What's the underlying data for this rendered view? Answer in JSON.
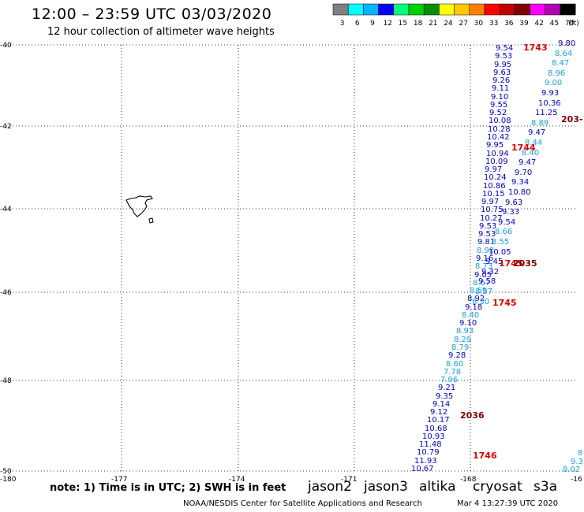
{
  "header": {
    "title": "12:00 – 23:59 UTC 03/03/2020",
    "subtitle": "12 hour collection of altimeter wave heights"
  },
  "color_scale": {
    "unit": "(ft)",
    "bins": [
      {
        "label": "3",
        "color": "#808080"
      },
      {
        "label": "6",
        "color": "#00ffff"
      },
      {
        "label": "9",
        "color": "#00b4ff"
      },
      {
        "label": "12",
        "color": "#0000ff"
      },
      {
        "label": "15",
        "color": "#00ff80"
      },
      {
        "label": "18",
        "color": "#00d000"
      },
      {
        "label": "21",
        "color": "#009000"
      },
      {
        "label": "24",
        "color": "#ffff00"
      },
      {
        "label": "27",
        "color": "#ffc800"
      },
      {
        "label": "30",
        "color": "#ff8000"
      },
      {
        "label": "33",
        "color": "#ff0000"
      },
      {
        "label": "36",
        "color": "#c00000"
      },
      {
        "label": "39",
        "color": "#800000"
      },
      {
        "label": "42",
        "color": "#ff00ff"
      },
      {
        "label": "45",
        "color": "#b000b0"
      },
      {
        "label": "70",
        "color": "#000000"
      }
    ]
  },
  "map": {
    "lat_range": [
      -50,
      -40
    ],
    "lon_range": [
      -180,
      -165
    ],
    "lat_labels": [
      "-40",
      "-42",
      "-44",
      "-46",
      "-48",
      "-50"
    ],
    "lon_labels": [
      "-180",
      "-177",
      "-174",
      "-171",
      "-168",
      "-16"
    ],
    "grid": true
  },
  "satellites": [
    {
      "name": "jason2",
      "color": "#0000cc"
    },
    {
      "name": "jason3",
      "color": "#00a000"
    },
    {
      "name": "altika",
      "color": "#ff8c00"
    },
    {
      "name": "cryosat",
      "color": "#e00000"
    },
    {
      "name": "s3a",
      "color": "#7a0000"
    }
  ],
  "pass_times": [
    {
      "label": "1743",
      "color": "#e00000"
    },
    {
      "label": "203-",
      "color": "#7a0000"
    },
    {
      "label": "1744",
      "color": "#e00000"
    },
    {
      "label": "1745",
      "color": "#e00000"
    },
    {
      "label": "1746",
      "color": "#e00000"
    },
    {
      "label": "1745",
      "color": "#e00000"
    },
    {
      "label": "2035",
      "color": "#7a0000"
    },
    {
      "label": "2036",
      "color": "#7a0000"
    }
  ],
  "track_left": [
    {
      "v": "9.54",
      "c": "#0000cc"
    },
    {
      "v": "9.53",
      "c": "#0000cc"
    },
    {
      "v": "9.95",
      "c": "#0000cc"
    },
    {
      "v": "9.63",
      "c": "#0000cc"
    },
    {
      "v": "9.26",
      "c": "#0000cc"
    },
    {
      "v": "9.11",
      "c": "#0000cc"
    },
    {
      "v": "9.10",
      "c": "#0000cc"
    },
    {
      "v": "9.55",
      "c": "#0000cc"
    },
    {
      "v": "9.52",
      "c": "#0000cc"
    },
    {
      "v": "10.08",
      "c": "#0000cc"
    },
    {
      "v": "10.28",
      "c": "#0000cc"
    },
    {
      "v": "10.42",
      "c": "#0000cc"
    },
    {
      "v": "9.95",
      "c": "#0000cc"
    },
    {
      "v": "10.94",
      "c": "#0000cc"
    },
    {
      "v": "10.09",
      "c": "#0000cc"
    },
    {
      "v": "9.97",
      "c": "#0000cc"
    },
    {
      "v": "10.24",
      "c": "#0000cc"
    },
    {
      "v": "10.86",
      "c": "#0000cc"
    },
    {
      "v": "10.15",
      "c": "#0000cc"
    },
    {
      "v": "9.97",
      "c": "#0000cc"
    },
    {
      "v": "10.75",
      "c": "#0000cc"
    },
    {
      "v": "10.27",
      "c": "#0000cc"
    },
    {
      "v": "9.53",
      "c": "#0000cc"
    },
    {
      "v": "9.53",
      "c": "#0000cc"
    },
    {
      "v": "9.81",
      "c": "#0000cc"
    },
    {
      "v": "8.98",
      "c": "#1aa0e0"
    },
    {
      "v": "9.16",
      "c": "#0000cc"
    },
    {
      "v": "8.73",
      "c": "#1aa0e0"
    },
    {
      "v": "9.05",
      "c": "#0000cc"
    },
    {
      "v": "8.67",
      "c": "#1aa0e0"
    },
    {
      "v": "8.59",
      "c": "#1aa0e0"
    },
    {
      "v": "8.92",
      "c": "#0000cc"
    },
    {
      "v": "9.18",
      "c": "#0000cc"
    },
    {
      "v": "8.40",
      "c": "#1aa0e0"
    },
    {
      "v": "9.10",
      "c": "#0000cc"
    },
    {
      "v": "8.93",
      "c": "#1aa0e0"
    },
    {
      "v": "8.29",
      "c": "#1aa0e0"
    },
    {
      "v": "8.79",
      "c": "#1aa0e0"
    },
    {
      "v": "9.28",
      "c": "#0000cc"
    },
    {
      "v": "8.60",
      "c": "#1aa0e0"
    },
    {
      "v": "7.78",
      "c": "#1aa0e0"
    },
    {
      "v": "7.96",
      "c": "#1aa0e0"
    },
    {
      "v": "9.21",
      "c": "#0000cc"
    },
    {
      "v": "9.35",
      "c": "#0000cc"
    },
    {
      "v": "9.14",
      "c": "#0000cc"
    },
    {
      "v": "9.12",
      "c": "#0000cc"
    },
    {
      "v": "10.17",
      "c": "#0000cc"
    },
    {
      "v": "10.68",
      "c": "#0000cc"
    },
    {
      "v": "10.93",
      "c": "#0000cc"
    },
    {
      "v": "11.48",
      "c": "#0000cc"
    },
    {
      "v": "10.79",
      "c": "#0000cc"
    },
    {
      "v": "11.93",
      "c": "#0000cc"
    },
    {
      "v": "10.67",
      "c": "#0000cc"
    }
  ],
  "track_right": [
    {
      "v": "9.80",
      "c": "#0000cc"
    },
    {
      "v": "8.64",
      "c": "#1aa0e0"
    },
    {
      "v": "8.47",
      "c": "#1aa0e0"
    },
    {
      "v": "8.96",
      "c": "#1aa0e0"
    },
    {
      "v": "9.00",
      "c": "#1aa0e0"
    },
    {
      "v": "9.93",
      "c": "#0000cc"
    },
    {
      "v": "10.36",
      "c": "#0000cc"
    },
    {
      "v": "11.25",
      "c": "#0000cc"
    },
    {
      "v": "8.89",
      "c": "#1aa0e0"
    },
    {
      "v": "9.47",
      "c": "#0000cc"
    },
    {
      "v": "8.44",
      "c": "#1aa0e0"
    },
    {
      "v": "8.40",
      "c": "#1aa0e0"
    },
    {
      "v": "9.47",
      "c": "#0000cc"
    },
    {
      "v": "9.70",
      "c": "#0000cc"
    },
    {
      "v": "9.34",
      "c": "#0000cc"
    },
    {
      "v": "10.80",
      "c": "#0000cc"
    },
    {
      "v": "9.63",
      "c": "#0000cc"
    },
    {
      "v": "9.33",
      "c": "#0000cc"
    },
    {
      "v": "9.54",
      "c": "#0000cc"
    },
    {
      "v": "8.66",
      "c": "#1aa0e0"
    },
    {
      "v": "8.55",
      "c": "#1aa0e0"
    },
    {
      "v": "10.05",
      "c": "#0000cc"
    },
    {
      "v": "9.45",
      "c": "#0000cc"
    },
    {
      "v": "9.32",
      "c": "#0000cc"
    },
    {
      "v": "9.58",
      "c": "#0000cc"
    },
    {
      "v": "8.57",
      "c": "#1aa0e0"
    },
    {
      "v": "8.30",
      "c": "#1aa0e0"
    }
  ],
  "edge_values": [
    {
      "v": "9.3",
      "c": "#1aa0e0"
    },
    {
      "v": "8.02",
      "c": "#1aa0e0"
    },
    {
      "v": "8",
      "c": "#1aa0e0"
    }
  ],
  "footer": {
    "note": "note: 1) Time is in UTC; 2) SWH is in feet",
    "credit": "NOAA/NESDIS Center for Satellite Applications and Research",
    "timestamp": "Mar  4 13:27:39 UTC 2020"
  }
}
